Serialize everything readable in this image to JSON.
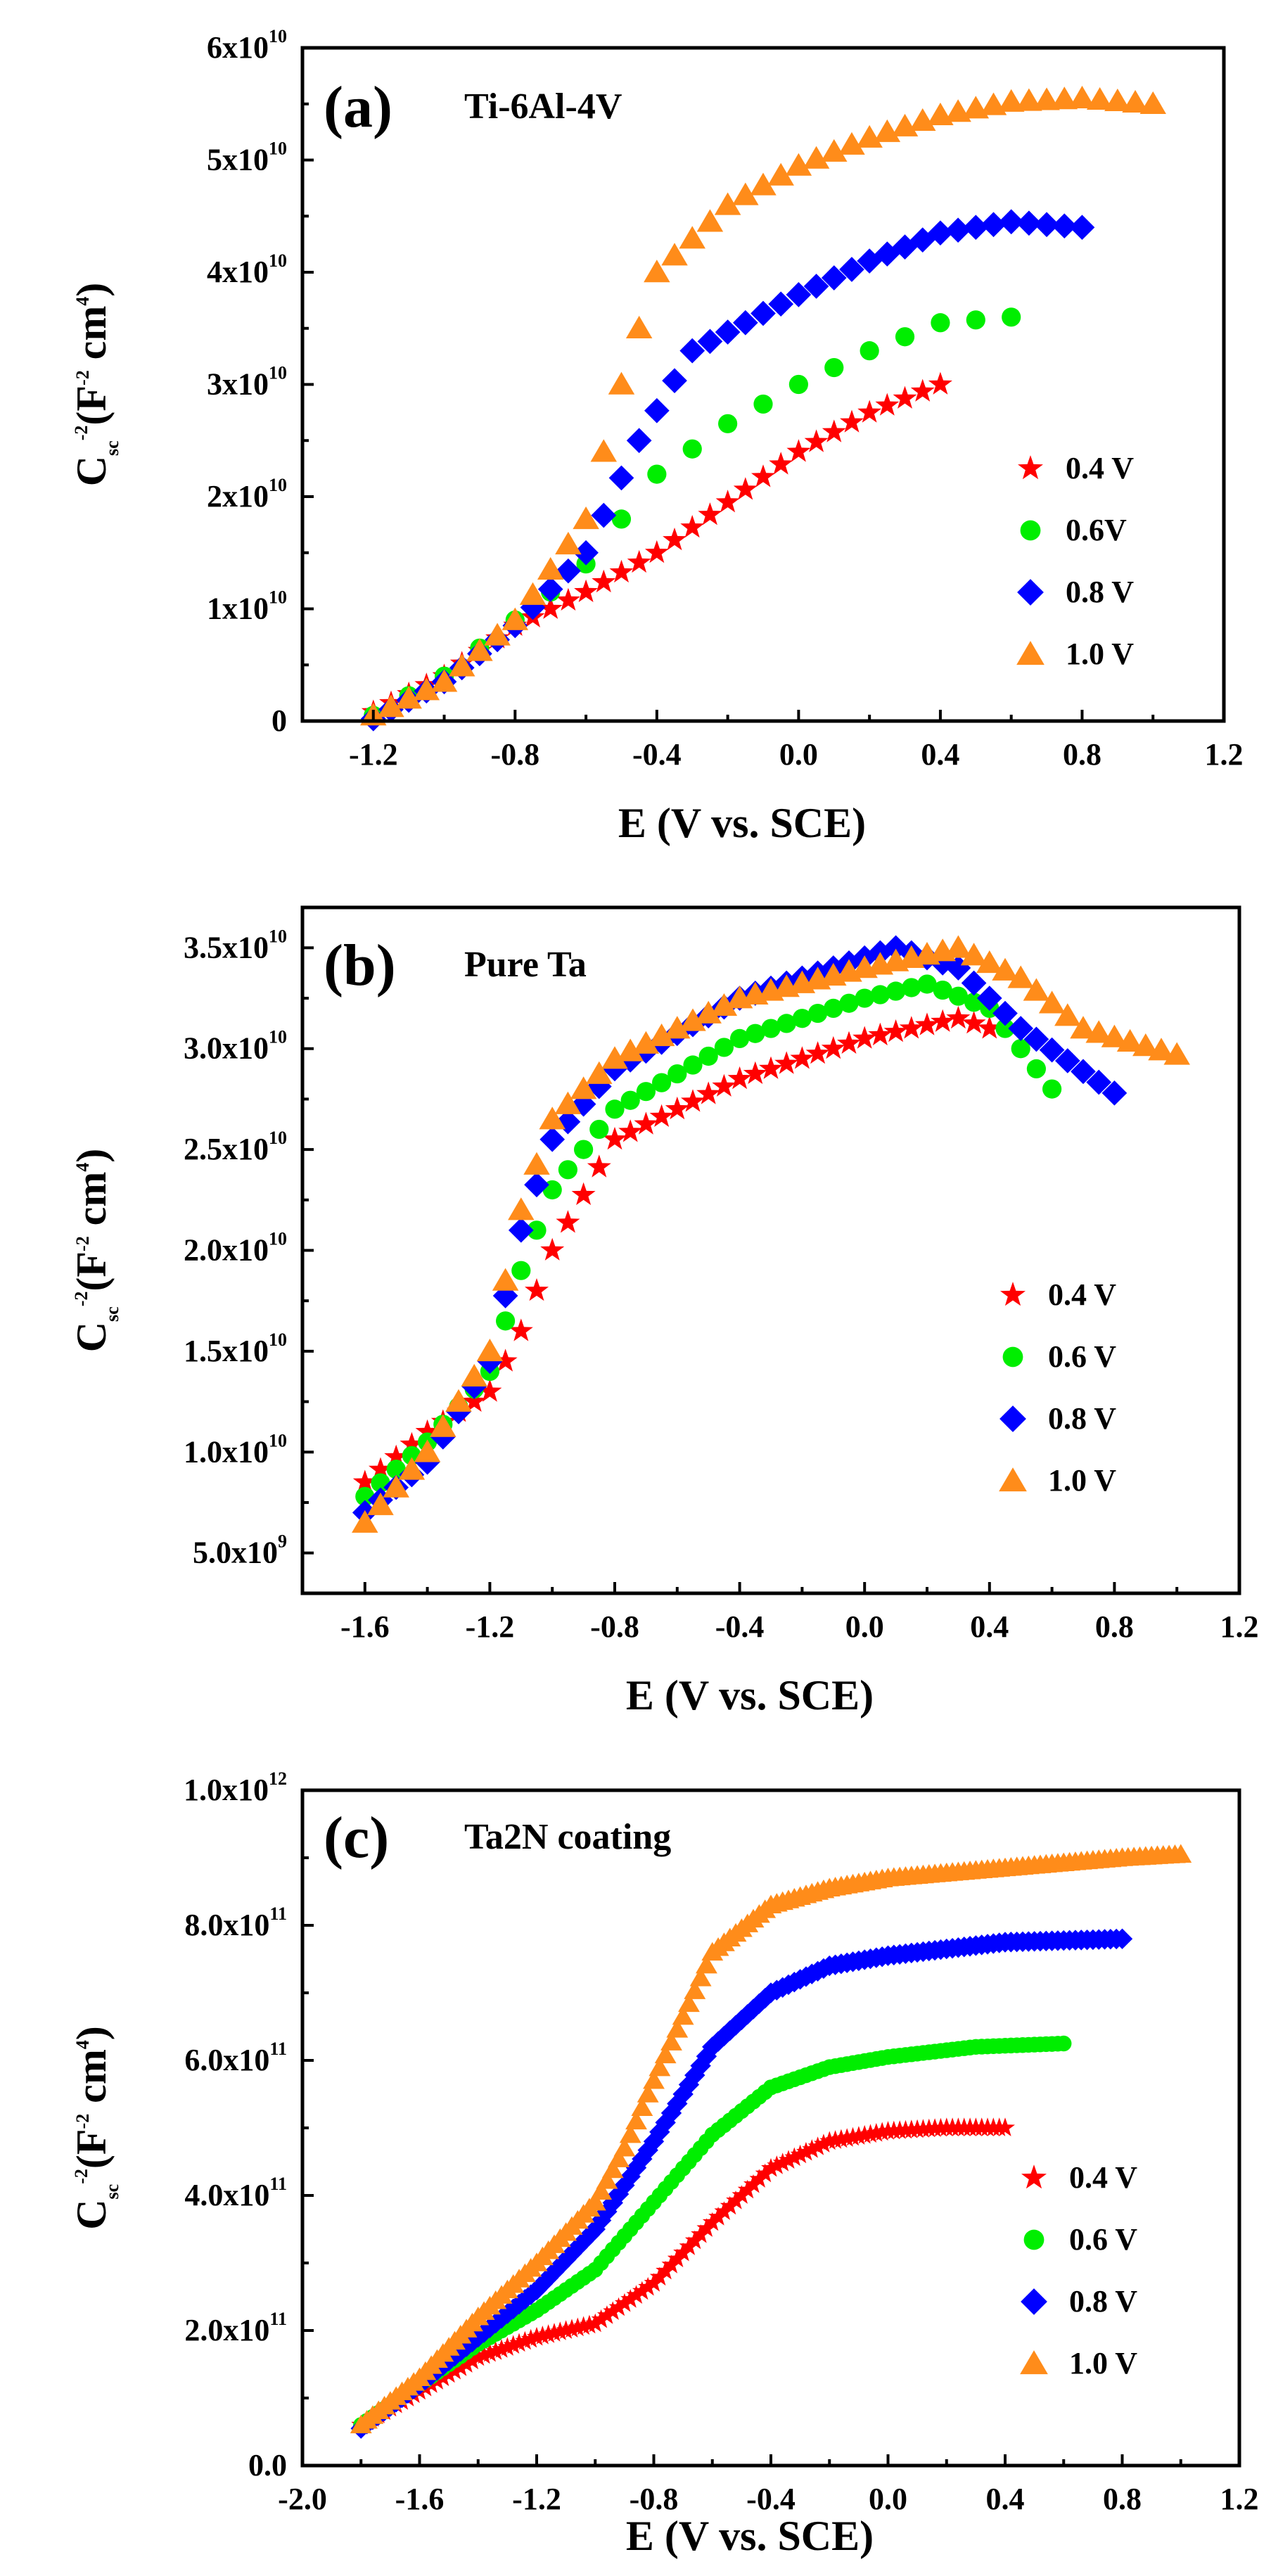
{
  "figure": {
    "xlabel": "E (V vs. SCE)",
    "ylabel_main": "C",
    "ylabel_sub": "sc",
    "ylabel_exp": "-2",
    "ylabel_units": "(F",
    "ylabel_units_exp": "-2",
    "ylabel_units_tail": " cm",
    "ylabel_units_tail_exp": "4",
    "ylabel_close": ")"
  },
  "chart_data": [
    {
      "id": "a",
      "type": "scatter",
      "panel_label": "(a)",
      "title": "Ti-6Al-4V",
      "xlabel": "E (V vs. SCE)",
      "ylabel": "Csc-2 (F-2 cm4)",
      "xlim": [
        -1.4,
        1.2
      ],
      "ylim": [
        0,
        60000000000.0
      ],
      "xticks": [
        {
          "v": -1.2,
          "label": "-1.2"
        },
        {
          "v": -0.8,
          "label": "-0.8"
        },
        {
          "v": -0.4,
          "label": "-0.4"
        },
        {
          "v": 0.0,
          "label": "0.0"
        },
        {
          "v": 0.4,
          "label": "0.4"
        },
        {
          "v": 0.8,
          "label": "0.8"
        },
        {
          "v": 1.2,
          "label": "1.2"
        }
      ],
      "yticks": [
        {
          "v": 0,
          "m": "0",
          "e": ""
        },
        {
          "v": 10000000000.0,
          "m": "1x10",
          "e": "10"
        },
        {
          "v": 20000000000.0,
          "m": "2x10",
          "e": "10"
        },
        {
          "v": 30000000000.0,
          "m": "3x10",
          "e": "10"
        },
        {
          "v": 40000000000.0,
          "m": "4x10",
          "e": "10"
        },
        {
          "v": 50000000000.0,
          "m": "5x10",
          "e": "10"
        },
        {
          "v": 60000000000.0,
          "m": "6x10",
          "e": "10"
        }
      ],
      "legend_position": "center-right",
      "series": [
        {
          "name": "0.4 V",
          "marker": "star",
          "color": "#ff0000",
          "start": -1.2,
          "end": 0.4,
          "step": 0.05,
          "points": [
            [
              -1.2,
              800000000.0
            ],
            [
              -1.0,
              4000000000.0
            ],
            [
              -0.8,
              8500000000.0
            ],
            [
              -0.6,
              11500000000.0
            ],
            [
              -0.4,
              15000000000.0
            ],
            [
              -0.2,
              19500000000.0
            ],
            [
              0.0,
              24000000000.0
            ],
            [
              0.2,
              27500000000.0
            ],
            [
              0.4,
              30000000000.0
            ]
          ]
        },
        {
          "name": "0.6V",
          "marker": "circle",
          "color": "#00ee00",
          "start": -1.2,
          "end": 0.6,
          "step": 0.1,
          "points": [
            [
              -1.2,
              500000000.0
            ],
            [
              -1.0,
              4000000000.0
            ],
            [
              -0.8,
              9000000000.0
            ],
            [
              -0.6,
              14000000000.0
            ],
            [
              -0.4,
              22000000000.0
            ],
            [
              -0.2,
              26500000000.0
            ],
            [
              0.0,
              30000000000.0
            ],
            [
              0.2,
              33000000000.0
            ],
            [
              0.4,
              35500000000.0
            ],
            [
              0.6,
              36000000000.0
            ]
          ]
        },
        {
          "name": "0.8 V",
          "marker": "diamond",
          "color": "#0000ff",
          "start": -1.2,
          "end": 0.8,
          "step": 0.05,
          "points": [
            [
              -1.2,
              200000000.0
            ],
            [
              -1.0,
              3500000000.0
            ],
            [
              -0.8,
              8500000000.0
            ],
            [
              -0.6,
              15000000000.0
            ],
            [
              -0.45,
              25000000000.0
            ],
            [
              -0.3,
              33000000000.0
            ],
            [
              0.0,
              38000000000.0
            ],
            [
              0.2,
              41000000000.0
            ],
            [
              0.4,
              43500000000.0
            ],
            [
              0.6,
              44500000000.0
            ],
            [
              0.8,
              44000000000.0
            ]
          ]
        },
        {
          "name": "1.0 V",
          "marker": "triangle",
          "color": "#ff8c1a",
          "start": -1.2,
          "end": 1.0,
          "step": 0.05,
          "points": [
            [
              -1.2,
              500000000.0
            ],
            [
              -1.0,
              3500000000.0
            ],
            [
              -0.8,
              9000000000.0
            ],
            [
              -0.6,
              18000000000.0
            ],
            [
              -0.5,
              30000000000.0
            ],
            [
              -0.4,
              40000000000.0
            ],
            [
              -0.2,
              46000000000.0
            ],
            [
              0.0,
              49500000000.0
            ],
            [
              0.2,
              52000000000.0
            ],
            [
              0.4,
              54000000000.0
            ],
            [
              0.6,
              55200000000.0
            ],
            [
              0.8,
              55500000000.0
            ],
            [
              1.0,
              55000000000.0
            ]
          ]
        }
      ]
    },
    {
      "id": "b",
      "type": "scatter",
      "panel_label": "(b)",
      "title": "Pure Ta",
      "xlabel": "E (V vs. SCE)",
      "ylabel": "Csc-2 (F-2 cm4)",
      "xlim": [
        -1.8,
        1.2
      ],
      "ylim": [
        3000000000.0,
        37000000000.0
      ],
      "xticks": [
        {
          "v": -1.6,
          "label": "-1.6"
        },
        {
          "v": -1.2,
          "label": "-1.2"
        },
        {
          "v": -0.8,
          "label": "-0.8"
        },
        {
          "v": -0.4,
          "label": "-0.4"
        },
        {
          "v": 0.0,
          "label": "0.0"
        },
        {
          "v": 0.4,
          "label": "0.4"
        },
        {
          "v": 0.8,
          "label": "0.8"
        },
        {
          "v": 1.2,
          "label": "1.2"
        }
      ],
      "yticks": [
        {
          "v": 5000000000.0,
          "m": "5.0x10",
          "e": "9"
        },
        {
          "v": 10000000000.0,
          "m": "1.0x10",
          "e": "10"
        },
        {
          "v": 15000000000.0,
          "m": "1.5x10",
          "e": "10"
        },
        {
          "v": 20000000000.0,
          "m": "2.0x10",
          "e": "10"
        },
        {
          "v": 25000000000.0,
          "m": "2.5x10",
          "e": "10"
        },
        {
          "v": 30000000000.0,
          "m": "3.0x10",
          "e": "10"
        },
        {
          "v": 35000000000.0,
          "m": "3.5x10",
          "e": "10"
        }
      ],
      "legend_position": "center-right",
      "series": [
        {
          "name": "0.4 V",
          "marker": "star",
          "color": "#ff0000",
          "start": -1.6,
          "end": 0.4,
          "step": 0.05,
          "points": [
            [
              -1.6,
              8500000000.0
            ],
            [
              -1.4,
              11000000000.0
            ],
            [
              -1.2,
              13000000000.0
            ],
            [
              -1.1,
              16000000000.0
            ],
            [
              -1.0,
              20000000000.0
            ],
            [
              -0.8,
              25500000000.0
            ],
            [
              -0.4,
              28500000000.0
            ],
            [
              0.0,
              30500000000.0
            ],
            [
              0.3,
              31500000000.0
            ],
            [
              0.4,
              31000000000.0
            ]
          ]
        },
        {
          "name": "0.6 V",
          "marker": "circle",
          "color": "#00ee00",
          "start": -1.6,
          "end": 0.6,
          "step": 0.05,
          "points": [
            [
              -1.6,
              7800000000.0
            ],
            [
              -1.4,
              10500000000.0
            ],
            [
              -1.2,
              14000000000.0
            ],
            [
              -1.1,
              19000000000.0
            ],
            [
              -1.0,
              23000000000.0
            ],
            [
              -0.8,
              27000000000.0
            ],
            [
              -0.4,
              30500000000.0
            ],
            [
              0.0,
              32500000000.0
            ],
            [
              0.2,
              33200000000.0
            ],
            [
              0.4,
              32000000000.0
            ],
            [
              0.6,
              28000000000.0
            ]
          ]
        },
        {
          "name": "0.8 V",
          "marker": "diamond",
          "color": "#0000ff",
          "start": -1.6,
          "end": 0.8,
          "step": 0.05,
          "points": [
            [
              -1.6,
              7000000000.0
            ],
            [
              -1.4,
              9500000000.0
            ],
            [
              -1.2,
              14500000000.0
            ],
            [
              -1.1,
              21000000000.0
            ],
            [
              -1.0,
              25500000000.0
            ],
            [
              -0.8,
              29000000000.0
            ],
            [
              -0.4,
              32500000000.0
            ],
            [
              0.0,
              34500000000.0
            ],
            [
              0.1,
              35000000000.0
            ],
            [
              0.3,
              34000000000.0
            ],
            [
              0.5,
              31000000000.0
            ],
            [
              0.8,
              27800000000.0
            ]
          ]
        },
        {
          "name": "1.0 V",
          "marker": "triangle",
          "color": "#ff8c1a",
          "start": -1.6,
          "end": 1.0,
          "step": 0.05,
          "points": [
            [
              -1.6,
              6500000000.0
            ],
            [
              -1.4,
              10000000000.0
            ],
            [
              -1.2,
              15000000000.0
            ],
            [
              -1.1,
              22000000000.0
            ],
            [
              -1.0,
              26500000000.0
            ],
            [
              -0.8,
              29500000000.0
            ],
            [
              -0.4,
              32500000000.0
            ],
            [
              0.0,
              34000000000.0
            ],
            [
              0.3,
              35000000000.0
            ],
            [
              0.5,
              33500000000.0
            ],
            [
              0.7,
              31000000000.0
            ],
            [
              1.0,
              29700000000.0
            ]
          ]
        }
      ]
    },
    {
      "id": "c",
      "type": "scatter",
      "panel_label": "(c)",
      "title": "Ta2N coating",
      "xlabel": "E (V vs. SCE)",
      "ylabel": "Csc-2 (F-2 cm4)",
      "xlim": [
        -2.0,
        1.2
      ],
      "ylim": [
        0,
        1000000000000.0
      ],
      "xticks": [
        {
          "v": -2.0,
          "label": "-2.0"
        },
        {
          "v": -1.6,
          "label": "-1.6"
        },
        {
          "v": -1.2,
          "label": "-1.2"
        },
        {
          "v": -0.8,
          "label": "-0.8"
        },
        {
          "v": -0.4,
          "label": "-0.4"
        },
        {
          "v": 0.0,
          "label": "0.0"
        },
        {
          "v": 0.4,
          "label": "0.4"
        },
        {
          "v": 0.8,
          "label": "0.8"
        },
        {
          "v": 1.2,
          "label": "1.2"
        }
      ],
      "yticks": [
        {
          "v": 0,
          "m": "0.0",
          "e": ""
        },
        {
          "v": 200000000000.0,
          "m": "2.0x10",
          "e": "11"
        },
        {
          "v": 400000000000.0,
          "m": "4.0x10",
          "e": "11"
        },
        {
          "v": 600000000000.0,
          "m": "6.0x10",
          "e": "11"
        },
        {
          "v": 800000000000.0,
          "m": "8.0x10",
          "e": "11"
        },
        {
          "v": 1000000000000.0,
          "m": "1.0x10",
          "e": "12"
        }
      ],
      "legend_position": "bottom-right",
      "series": [
        {
          "name": "0.4 V",
          "marker": "star",
          "color": "#ff0000",
          "start": -1.8,
          "end": 0.4,
          "step": 0.02,
          "points": [
            [
              -1.8,
              60000000000.0
            ],
            [
              -1.6,
              110000000000.0
            ],
            [
              -1.4,
              160000000000.0
            ],
            [
              -1.2,
              190000000000.0
            ],
            [
              -1.0,
              210000000000.0
            ],
            [
              -0.8,
              270000000000.0
            ],
            [
              -0.6,
              360000000000.0
            ],
            [
              -0.4,
              440000000000.0
            ],
            [
              -0.2,
              480000000000.0
            ],
            [
              0.0,
              495000000000.0
            ],
            [
              0.2,
              500000000000.0
            ],
            [
              0.4,
              500000000000.0
            ]
          ]
        },
        {
          "name": "0.6 V",
          "marker": "circle",
          "color": "#00ee00",
          "start": -1.8,
          "end": 0.6,
          "step": 0.02,
          "points": [
            [
              -1.8,
              60000000000.0
            ],
            [
              -1.6,
              120000000000.0
            ],
            [
              -1.4,
              180000000000.0
            ],
            [
              -1.2,
              230000000000.0
            ],
            [
              -1.0,
              290000000000.0
            ],
            [
              -0.8,
              390000000000.0
            ],
            [
              -0.6,
              490000000000.0
            ],
            [
              -0.4,
              560000000000.0
            ],
            [
              -0.2,
              590000000000.0
            ],
            [
              0.0,
              605000000000.0
            ],
            [
              0.3,
              620000000000.0
            ],
            [
              0.6,
              625000000000.0
            ]
          ]
        },
        {
          "name": "0.8 V",
          "marker": "diamond",
          "color": "#0000ff",
          "start": -1.8,
          "end": 0.8,
          "step": 0.02,
          "points": [
            [
              -1.8,
              55000000000.0
            ],
            [
              -1.6,
              120000000000.0
            ],
            [
              -1.4,
              190000000000.0
            ],
            [
              -1.2,
              260000000000.0
            ],
            [
              -1.0,
              350000000000.0
            ],
            [
              -0.8,
              480000000000.0
            ],
            [
              -0.6,
              620000000000.0
            ],
            [
              -0.4,
              700000000000.0
            ],
            [
              -0.2,
              740000000000.0
            ],
            [
              0.0,
              755000000000.0
            ],
            [
              0.4,
              775000000000.0
            ],
            [
              0.8,
              780000000000.0
            ]
          ]
        },
        {
          "name": "1.0 V",
          "marker": "triangle",
          "color": "#ff8c1a",
          "start": -1.8,
          "end": 1.0,
          "step": 0.02,
          "points": [
            [
              -1.8,
              60000000000.0
            ],
            [
              -1.6,
              130000000000.0
            ],
            [
              -1.4,
              220000000000.0
            ],
            [
              -1.2,
              300000000000.0
            ],
            [
              -1.0,
              390000000000.0
            ],
            [
              -0.9,
              470000000000.0
            ],
            [
              -0.8,
              570000000000.0
            ],
            [
              -0.6,
              760000000000.0
            ],
            [
              -0.4,
              830000000000.0
            ],
            [
              -0.2,
              855000000000.0
            ],
            [
              0.0,
              870000000000.0
            ],
            [
              0.4,
              885000000000.0
            ],
            [
              0.8,
              900000000000.0
            ],
            [
              1.0,
              905000000000.0
            ]
          ]
        }
      ]
    }
  ]
}
